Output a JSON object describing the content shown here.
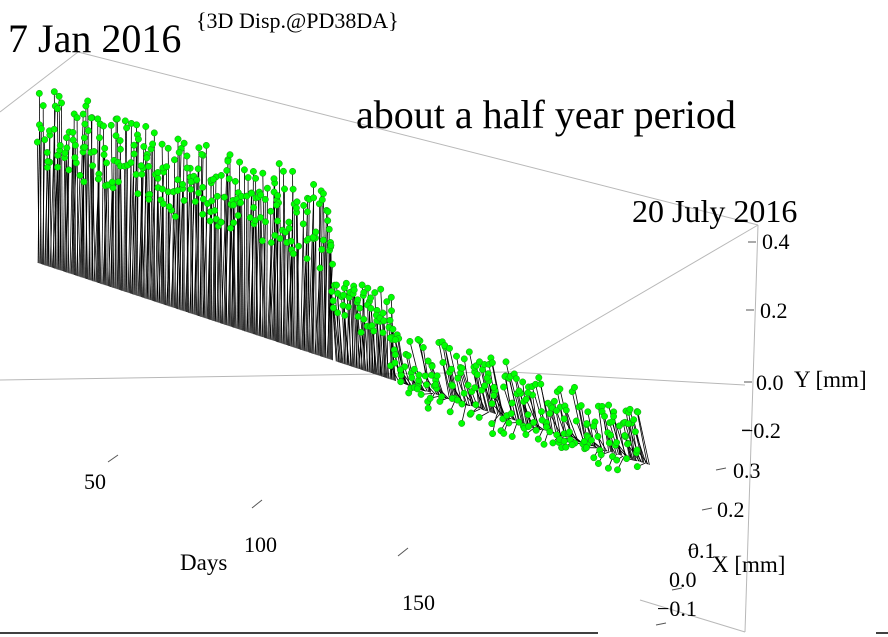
{
  "chart_data": {
    "type": "scatter",
    "title": "{3D Disp.@PD38DA}",
    "annotations": {
      "start_date": "7 Jan 2016",
      "end_date": "20 July 2016",
      "period_note": "about a  half year period"
    },
    "axes": {
      "days": {
        "label": "Days",
        "range": [
          0,
          196
        ],
        "ticks": [
          "50",
          "100",
          "150"
        ]
      },
      "x": {
        "label": "X [mm]",
        "range": [
          -0.1,
          0.3
        ],
        "ticks": [
          "0.3",
          "0.2",
          "0.1",
          "0.0",
          "−0.1"
        ]
      },
      "y": {
        "label": "Y [mm]",
        "range": [
          -0.3,
          0.4
        ],
        "ticks": [
          "0.4",
          "0.2",
          "0.0",
          "−0.2"
        ]
      }
    },
    "marker_color": "#00ff00",
    "stem_color": "#000000",
    "series": [
      {
        "segment": "days 1-95",
        "days": [
          1,
          95
        ],
        "x_range": [
          0.12,
          0.26
        ],
        "y_range": [
          0.18,
          0.42
        ]
      },
      {
        "segment": "days 96-115",
        "days": [
          96,
          115
        ],
        "x_range": [
          0.05,
          0.2
        ],
        "y_range": [
          0.0,
          0.12
        ]
      },
      {
        "segment": "days 116-196",
        "days": [
          116,
          196
        ],
        "x_range": [
          -0.05,
          0.1
        ],
        "y_range": [
          -0.22,
          -0.02
        ]
      }
    ]
  }
}
